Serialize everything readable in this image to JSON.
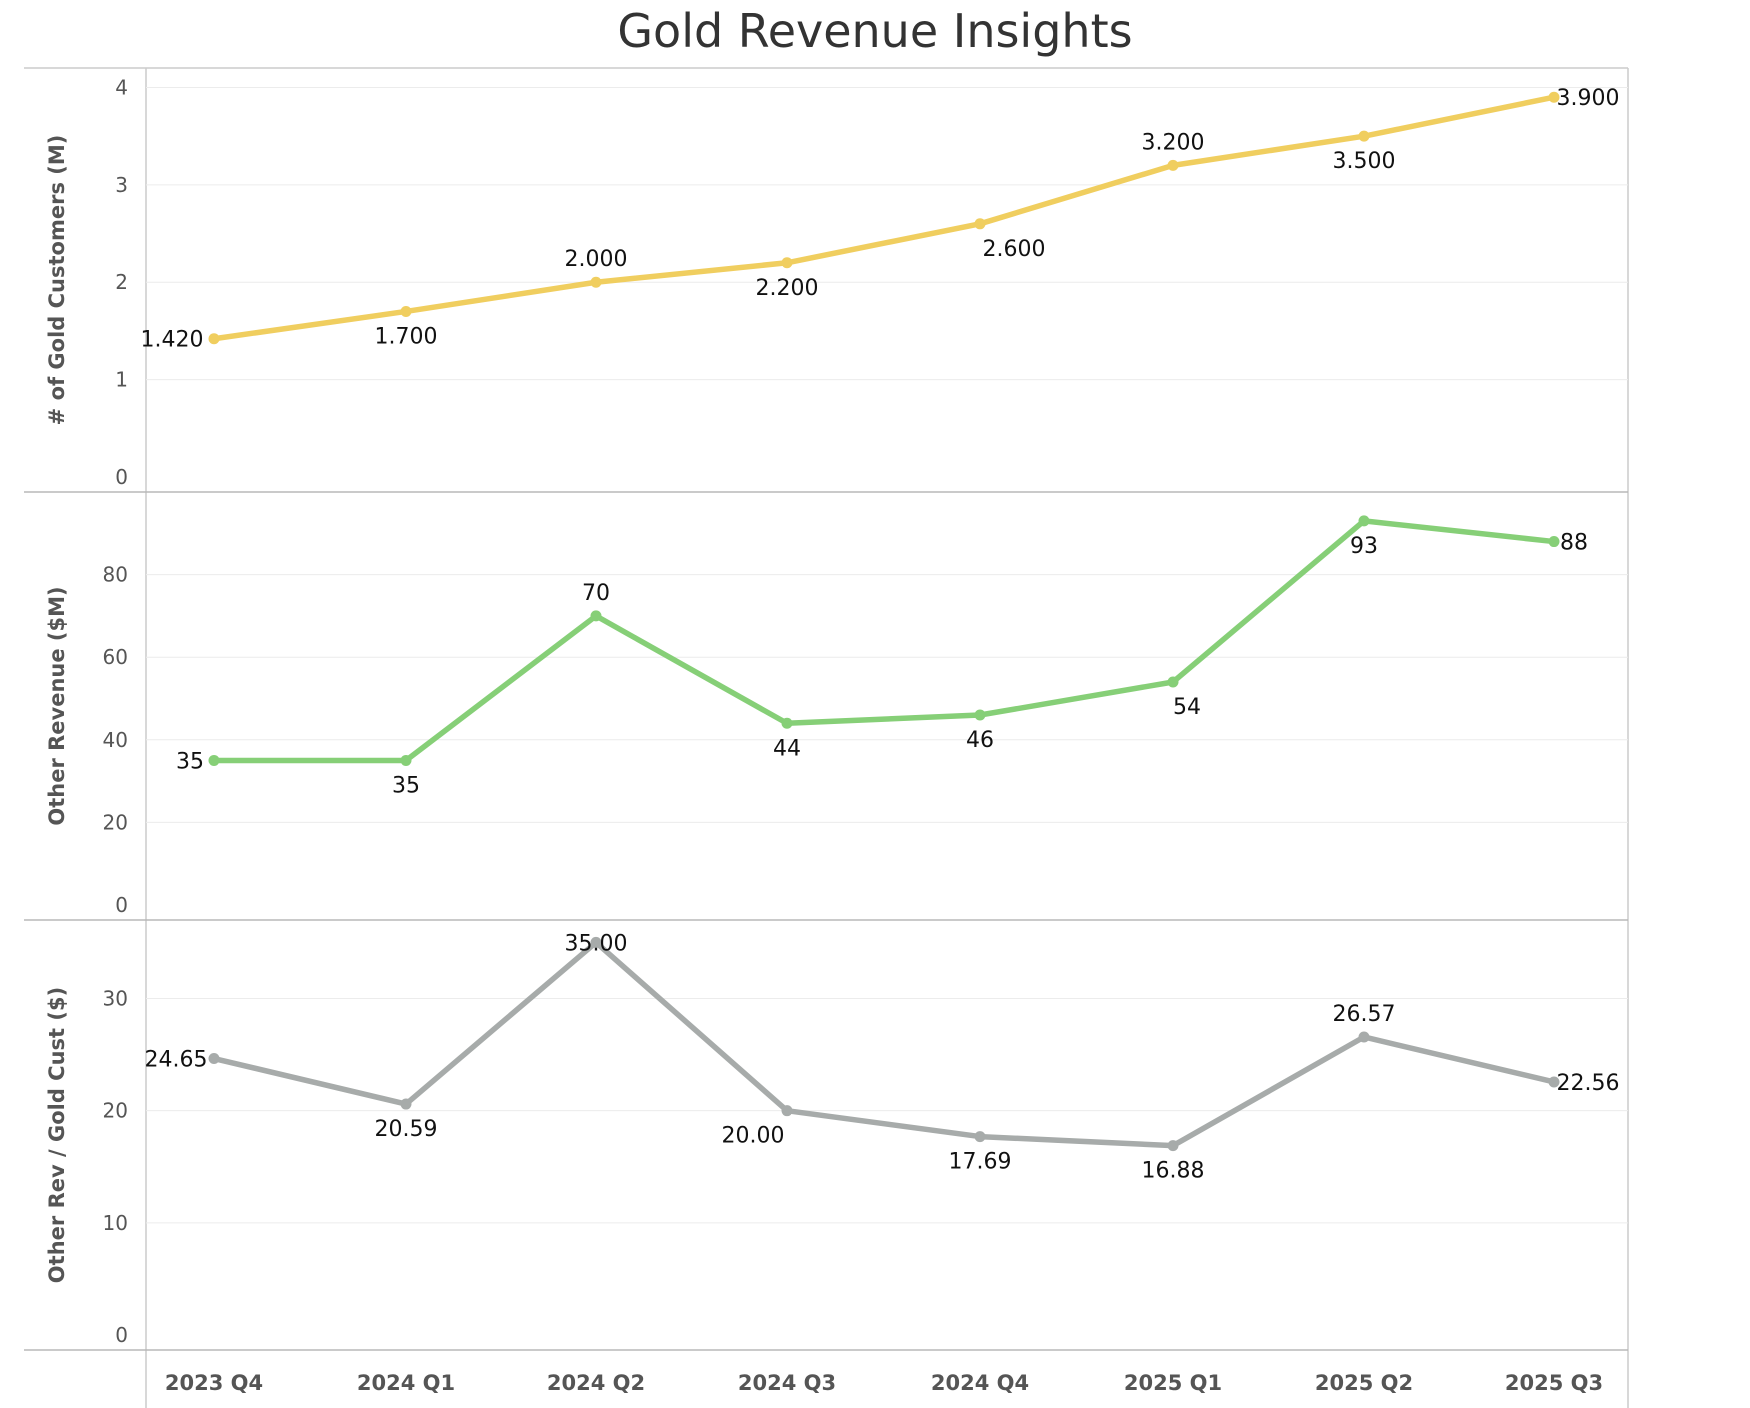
{
  "chart_data": {
    "type": "line",
    "title": "Gold Revenue Insights",
    "categories": [
      "2023 Q4",
      "2024 Q1",
      "2024 Q2",
      "2024 Q3",
      "2024 Q4",
      "2025 Q1",
      "2025 Q2",
      "2025 Q3"
    ],
    "grid": true,
    "panels": [
      {
        "ylabel": "# of Gold Customers (M)",
        "ylim": [
          0,
          4.2
        ],
        "yticks": [
          0,
          1,
          2,
          3,
          4
        ],
        "color": "#f0ce5f",
        "values": [
          1.42,
          1.7,
          2.0,
          2.2,
          2.6,
          3.2,
          3.5,
          3.9
        ],
        "labels": [
          "1.420",
          "1.700",
          "2.000",
          "2.200",
          "2.600",
          "3.200",
          "3.500",
          "3.900"
        ]
      },
      {
        "ylabel": "Other Revenue ($M)",
        "ylim": [
          0,
          100
        ],
        "yticks": [
          0,
          20,
          40,
          60,
          80
        ],
        "color": "#86cf77",
        "values": [
          35,
          35,
          70,
          44,
          46,
          54,
          93,
          88
        ],
        "labels": [
          "35",
          "35",
          "70",
          "44",
          "46",
          "54",
          "93",
          "88"
        ]
      },
      {
        "ylabel": "Other Rev / Gold Cust ($)",
        "ylim": [
          0,
          37
        ],
        "yticks": [
          0,
          10,
          20,
          30
        ],
        "color": "#a7abaa",
        "values": [
          24.65,
          20.59,
          35.0,
          20.0,
          17.69,
          16.88,
          26.57,
          22.56
        ],
        "labels": [
          "24.65",
          "20.59",
          "35.00",
          "20.00",
          "17.69",
          "16.88",
          "26.57",
          "22.56"
        ]
      }
    ]
  }
}
